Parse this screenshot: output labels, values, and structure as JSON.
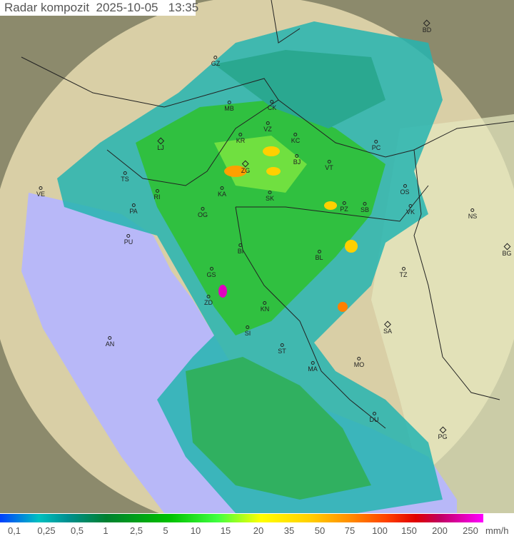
{
  "header": {
    "title": "Radar kompozit",
    "date": "2025-10-05",
    "time": "13:35"
  },
  "stations": [
    "BD",
    "GZ",
    "MB",
    "CK",
    "VZ",
    "KR",
    "KC",
    "LJ",
    "PC",
    "ZG",
    "BJ",
    "VT",
    "TS",
    "KA",
    "SK",
    "RI",
    "VE",
    "OS",
    "PZ",
    "SB",
    "PA",
    "OG",
    "VK",
    "NS",
    "PU",
    "BI",
    "BL",
    "BG",
    "GS",
    "TZ",
    "ZD",
    "KN",
    "SA",
    "SI",
    "AN",
    "ST",
    "MO",
    "MA",
    "DU",
    "PG"
  ],
  "legend": {
    "ticks": [
      "0,1",
      "0,25",
      "0,5",
      "1",
      "2,5",
      "5",
      "10",
      "15",
      "20",
      "35",
      "50",
      "75",
      "100",
      "150",
      "200",
      "250"
    ],
    "unit": "mm/h"
  },
  "colors": {
    "sea": "#b8b8f8",
    "terrain": "#d8c89a",
    "outside": "#8a8a70",
    "precip_low": "#20b0b0",
    "precip_mid": "#30c040",
    "precip_high": "#ffa000"
  }
}
